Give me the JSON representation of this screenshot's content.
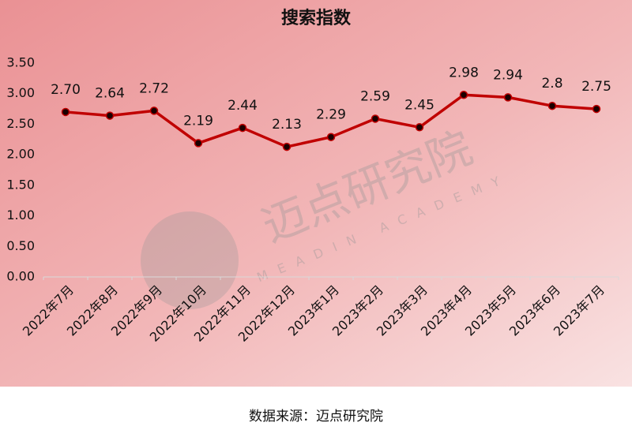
{
  "chart_data": {
    "type": "line",
    "title": "搜索指数",
    "categories": [
      "2022年7月",
      "2022年8月",
      "2022年9月",
      "2022年10月",
      "2022年11月",
      "2022年12月",
      "2023年1月",
      "2023年2月",
      "2023年3月",
      "2023年4月",
      "2023年5月",
      "2023年6月",
      "2023年7月"
    ],
    "values": [
      2.7,
      2.64,
      2.72,
      2.19,
      2.44,
      2.13,
      2.29,
      2.59,
      2.45,
      2.98,
      2.94,
      2.8,
      2.75
    ],
    "value_labels": [
      "2.70",
      "2.64",
      "2.72",
      "2.19",
      "2.44",
      "2.13",
      "2.29",
      "2.59",
      "2.45",
      "2.98",
      "2.94",
      "2.8",
      "2.75"
    ],
    "color": "#c00000",
    "ylim": [
      0,
      3.5
    ],
    "yticks": [
      {
        "value": 0,
        "label": "0.00"
      },
      {
        "value": 0.5,
        "label": "0.50"
      },
      {
        "value": 1,
        "label": "1.00"
      },
      {
        "value": 1.5,
        "label": "1.50"
      },
      {
        "value": 2,
        "label": "2.00"
      },
      {
        "value": 2.5,
        "label": "2.50"
      },
      {
        "value": 3,
        "label": "3.00"
      },
      {
        "value": 3.5,
        "label": "3.50"
      }
    ],
    "grid": false,
    "watermark": "迈点研究院",
    "watermark_subtitle": "MEADIN ACADEMY",
    "source": "数据来源：迈点研究院"
  }
}
